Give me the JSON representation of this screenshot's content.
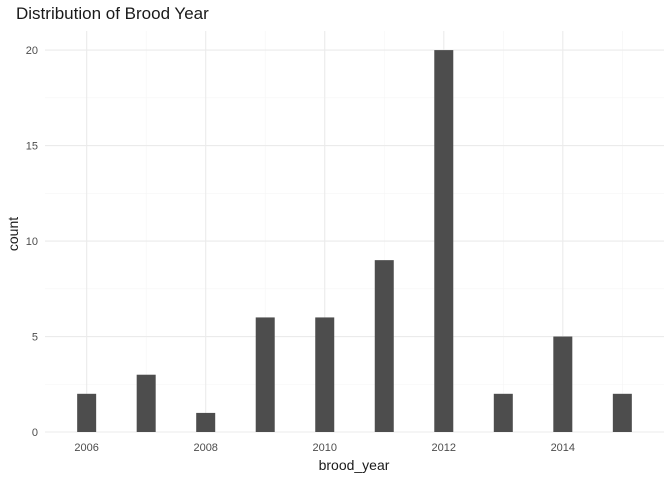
{
  "chart_data": {
    "type": "bar",
    "title": "Distribution of Brood Year",
    "xlabel": "brood_year",
    "ylabel": "count",
    "x": [
      2006,
      2007,
      2008,
      2009,
      2010,
      2011,
      2012,
      2013,
      2014,
      2015
    ],
    "values": [
      2,
      3,
      1,
      6,
      6,
      9,
      20,
      2,
      5,
      2
    ],
    "xlim": [
      2005.3,
      2015.7
    ],
    "ylim": [
      0,
      21
    ],
    "x_ticks": [
      2006,
      2008,
      2010,
      2012,
      2014
    ],
    "x_tick_labels": [
      "2006",
      "2008",
      "2010",
      "2012",
      "2014"
    ],
    "y_ticks": [
      0,
      5,
      10,
      15,
      20
    ],
    "y_tick_labels": [
      "0",
      "5",
      "10",
      "15",
      "20"
    ],
    "bar_color": "#4d4d4d",
    "grid": true,
    "legend": false
  }
}
